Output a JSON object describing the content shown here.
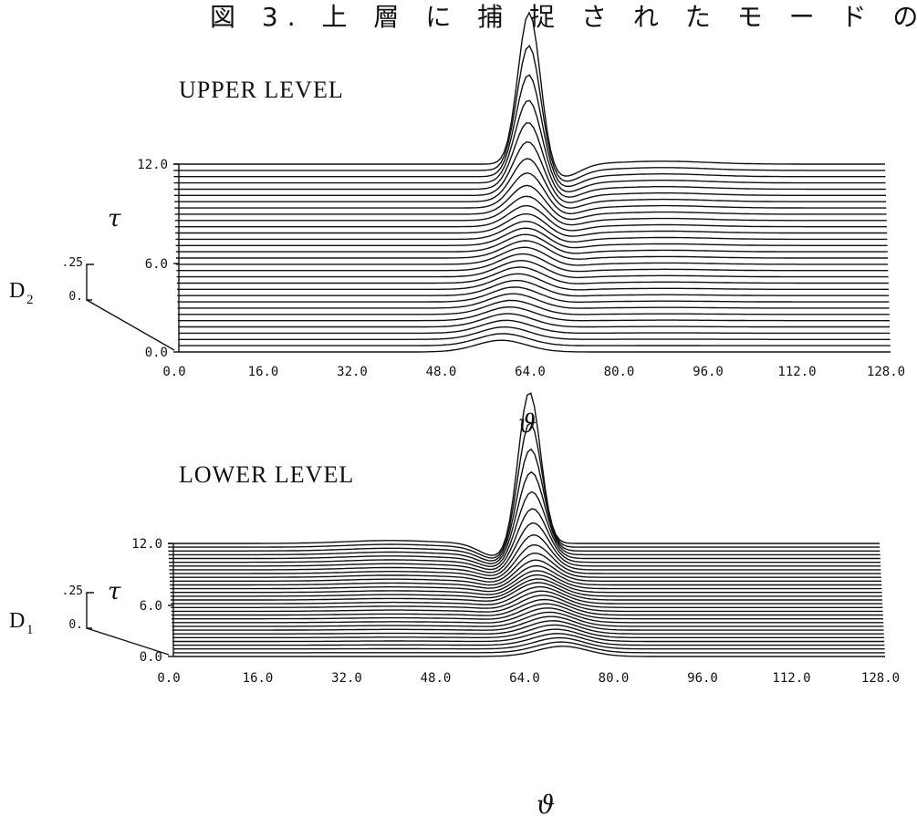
{
  "figure_caption": "図 3. 上 層 に 捕 捉 さ れ た モ ー ド の 例",
  "chart_data": [
    {
      "type": "line",
      "title": "UPPER LEVEL",
      "xlabel": "ϑ",
      "ylabel": "τ",
      "amplitude_label": "D",
      "amplitude_subscript": "2",
      "amplitude_ticks": [
        ".25",
        "0."
      ],
      "x_ticks": [
        "0.0",
        "16.0",
        "32.0",
        "48.0",
        "64.0",
        "80.0",
        "96.0",
        "112.0",
        "128.0"
      ],
      "y_ticks": [
        "0.0",
        "6.0",
        "12.0"
      ],
      "xlim": [
        0,
        128
      ],
      "ylim": [
        0,
        12
      ],
      "amplitude_range": [
        0,
        0.25
      ],
      "n_curves": 31,
      "series": [
        {
          "tau": 0.0,
          "peak_x": 58,
          "peak_amp": 0.08,
          "width": 4.5
        },
        {
          "tau": 6.0,
          "peak_x": 63,
          "peak_amp": 0.12,
          "width": 4.0
        },
        {
          "tau": 12.0,
          "peak_x": 64,
          "peak_amp": 1.05,
          "width": 2.0
        }
      ],
      "secondary_bump": {
        "x": 88,
        "amp": 0.02
      },
      "trough_x": 70
    },
    {
      "type": "line",
      "title": "LOWER LEVEL",
      "xlabel": "ϑ",
      "ylabel": "τ",
      "amplitude_label": "D",
      "amplitude_subscript": "1",
      "amplitude_ticks": [
        ".25",
        "0."
      ],
      "x_ticks": [
        "0.0",
        "16.0",
        "32.0",
        "48.0",
        "64.0",
        "80.0",
        "96.0",
        "112.0",
        "128.0"
      ],
      "y_ticks": [
        "0.0",
        "6.0",
        "12.0"
      ],
      "xlim": [
        0,
        128
      ],
      "ylim": [
        0,
        12
      ],
      "amplitude_range": [
        0,
        0.25
      ],
      "n_curves": 31,
      "series": [
        {
          "tau": 0.0,
          "peak_x": 70,
          "peak_amp": 0.07,
          "width": 4.5
        },
        {
          "tau": 6.0,
          "peak_x": 66,
          "peak_amp": 0.12,
          "width": 4.0
        },
        {
          "tau": 12.0,
          "peak_x": 65,
          "peak_amp": 1.05,
          "width": 2.0
        }
      ],
      "secondary_bump": {
        "x": 40,
        "amp": 0.02
      },
      "trough_x": 59
    }
  ]
}
